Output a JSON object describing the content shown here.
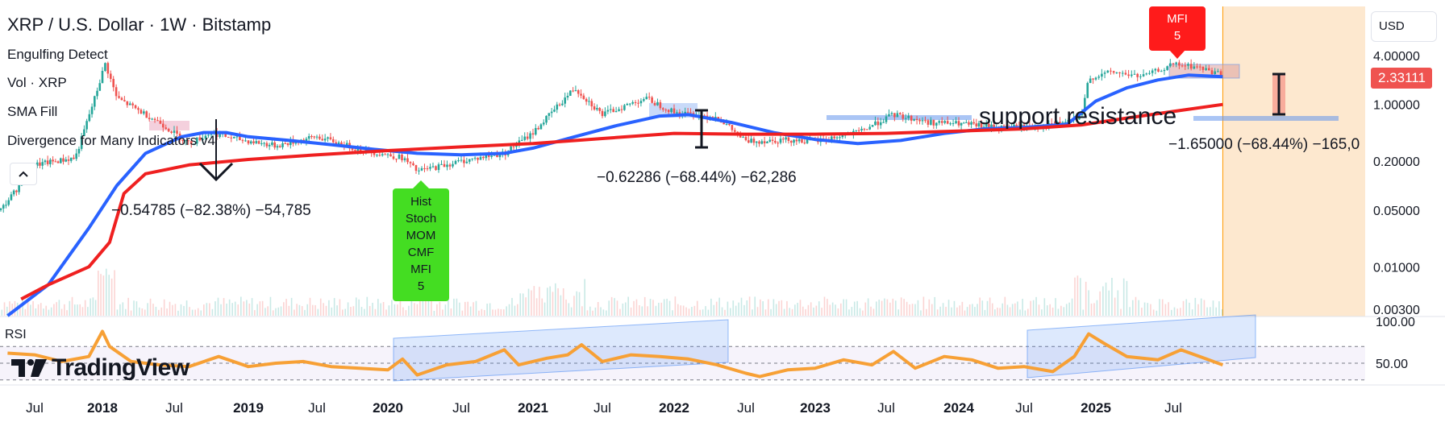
{
  "header": {
    "title": "XRP / U.S. Dollar · 1W · Bitstamp",
    "indicators": [
      "Engulfing Detect",
      "Vol · XRP",
      "SMA Fill",
      "Divergence for Many Indicators v4"
    ],
    "currency_button": "USD",
    "collapse_icon": "chevron-up-icon"
  },
  "logo": {
    "text": "TradingView"
  },
  "chart_data": [
    {
      "type": "candlestick",
      "title": "XRP / U.S. Dollar · 1W · Bitstamp",
      "y_scale": "log",
      "y_ticks": [
        "4.00000",
        "1.00000",
        "0.20000",
        "0.05000",
        "0.01000",
        "0.00300"
      ],
      "last_price": "2.33111",
      "x_labels": [
        "Jul",
        "2018",
        "Jul",
        "2019",
        "Jul",
        "2020",
        "Jul",
        "2021",
        "Jul",
        "2022",
        "Jul",
        "2023",
        "Jul",
        "2024",
        "Jul",
        "2025",
        "Jul"
      ],
      "series": [
        {
          "name": "SMA blue",
          "color": "#2962ff",
          "points": [
            [
              2017.3,
              0.0025
            ],
            [
              2017.6,
              0.006
            ],
            [
              2017.9,
              0.03
            ],
            [
              2018.1,
              0.1
            ],
            [
              2018.3,
              0.25
            ],
            [
              2018.55,
              0.4
            ],
            [
              2018.7,
              0.45
            ],
            [
              2018.85,
              0.45
            ],
            [
              2019.0,
              0.4
            ],
            [
              2019.3,
              0.36
            ],
            [
              2019.6,
              0.32
            ],
            [
              2019.9,
              0.28
            ],
            [
              2020.2,
              0.25
            ],
            [
              2020.5,
              0.24
            ],
            [
              2020.8,
              0.25
            ],
            [
              2021.0,
              0.29
            ],
            [
              2021.3,
              0.4
            ],
            [
              2021.6,
              0.55
            ],
            [
              2021.9,
              0.72
            ],
            [
              2022.1,
              0.75
            ],
            [
              2022.4,
              0.6
            ],
            [
              2022.7,
              0.45
            ],
            [
              2023.0,
              0.37
            ],
            [
              2023.3,
              0.33
            ],
            [
              2023.6,
              0.36
            ],
            [
              2023.9,
              0.44
            ],
            [
              2024.2,
              0.5
            ],
            [
              2024.5,
              0.52
            ],
            [
              2024.8,
              0.57
            ],
            [
              2025.0,
              1.1
            ],
            [
              2025.2,
              1.6
            ],
            [
              2025.4,
              2.0
            ],
            [
              2025.6,
              2.3
            ],
            [
              2025.82,
              2.2
            ]
          ]
        },
        {
          "name": "SMA red",
          "color": "#ef2020",
          "points": [
            [
              2017.4,
              0.004
            ],
            [
              2017.6,
              0.006
            ],
            [
              2017.9,
              0.01
            ],
            [
              2018.05,
              0.02
            ],
            [
              2018.15,
              0.08
            ],
            [
              2018.3,
              0.14
            ],
            [
              2018.6,
              0.18
            ],
            [
              2019.0,
              0.21
            ],
            [
              2019.5,
              0.24
            ],
            [
              2020.0,
              0.27
            ],
            [
              2020.5,
              0.3
            ],
            [
              2021.0,
              0.33
            ],
            [
              2021.5,
              0.38
            ],
            [
              2022.0,
              0.44
            ],
            [
              2022.5,
              0.43
            ],
            [
              2023.0,
              0.43
            ],
            [
              2023.5,
              0.44
            ],
            [
              2024.0,
              0.47
            ],
            [
              2024.5,
              0.5
            ],
            [
              2024.9,
              0.56
            ],
            [
              2025.2,
              0.68
            ],
            [
              2025.5,
              0.82
            ],
            [
              2025.82,
              1.0
            ]
          ]
        }
      ],
      "annotations": {
        "measurements": [
          "−0.54785 (−82.38%) −54,785",
          "−0.62286 (−68.44%) −62,286",
          "−1.65000 (−68.44%) −165,0"
        ],
        "text_label": "support resistance",
        "green_signal": [
          "Hist",
          "Stoch",
          "MOM",
          "CMF",
          "MFI",
          "5"
        ],
        "red_signal": [
          "MFI",
          "5"
        ]
      }
    },
    {
      "type": "line",
      "title": "RSI",
      "y_ticks": [
        "100.00",
        "50.00"
      ],
      "ylim": [
        20,
        100
      ],
      "bands": [
        70,
        50,
        30
      ],
      "series": [
        {
          "name": "RSI",
          "color": "#f7a035",
          "points": [
            [
              2017.3,
              62
            ],
            [
              2017.5,
              60
            ],
            [
              2017.7,
              52
            ],
            [
              2017.9,
              58
            ],
            [
              2018.0,
              88
            ],
            [
              2018.05,
              70
            ],
            [
              2018.2,
              52
            ],
            [
              2018.4,
              48
            ],
            [
              2018.6,
              46
            ],
            [
              2018.8,
              58
            ],
            [
              2019.0,
              46
            ],
            [
              2019.2,
              50
            ],
            [
              2019.4,
              52
            ],
            [
              2019.6,
              46
            ],
            [
              2019.8,
              44
            ],
            [
              2020.0,
              42
            ],
            [
              2020.1,
              55
            ],
            [
              2020.2,
              36
            ],
            [
              2020.4,
              48
            ],
            [
              2020.6,
              52
            ],
            [
              2020.8,
              66
            ],
            [
              2020.9,
              48
            ],
            [
              2021.1,
              56
            ],
            [
              2021.25,
              60
            ],
            [
              2021.35,
              72
            ],
            [
              2021.5,
              52
            ],
            [
              2021.7,
              60
            ],
            [
              2021.9,
              58
            ],
            [
              2022.1,
              55
            ],
            [
              2022.3,
              48
            ],
            [
              2022.5,
              38
            ],
            [
              2022.6,
              34
            ],
            [
              2022.8,
              42
            ],
            [
              2023.0,
              44
            ],
            [
              2023.2,
              54
            ],
            [
              2023.4,
              48
            ],
            [
              2023.55,
              64
            ],
            [
              2023.7,
              44
            ],
            [
              2023.9,
              58
            ],
            [
              2024.1,
              54
            ],
            [
              2024.3,
              44
            ],
            [
              2024.5,
              46
            ],
            [
              2024.7,
              40
            ],
            [
              2024.85,
              58
            ],
            [
              2024.95,
              85
            ],
            [
              2025.05,
              74
            ],
            [
              2025.2,
              58
            ],
            [
              2025.4,
              54
            ],
            [
              2025.55,
              66
            ],
            [
              2025.7,
              56
            ],
            [
              2025.82,
              48
            ]
          ]
        }
      ]
    }
  ],
  "colors": {
    "up": "#26a69a",
    "down": "#ef5350",
    "sma_blue": "#2962ff",
    "sma_red": "#ef2020",
    "rsi": "#f7a035",
    "future": "#fde8cf"
  }
}
